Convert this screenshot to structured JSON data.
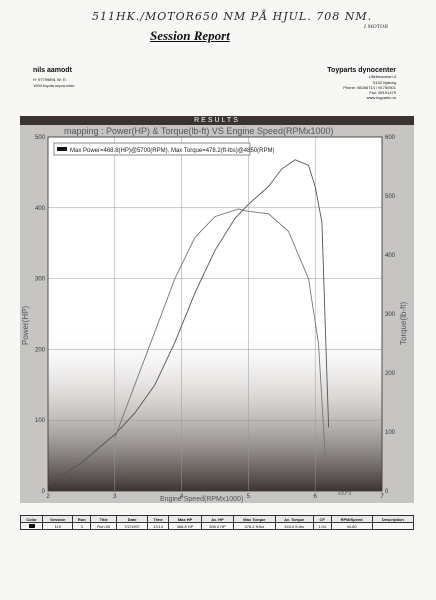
{
  "handwritten_note": "511HK./MOTOR650 NM PÅ HJUL. 708 NM.",
  "handwritten_sub": "I MOTOR",
  "title": "Session Report",
  "customer": {
    "name": "nils aamodt",
    "lines": [
      "H: 97799891  W:  E:",
      "1994 toyota supra mkiv"
    ]
  },
  "dyno_center": {
    "name": "Toyparts dynocenter",
    "lines": [
      "Lillebicoveien 4",
      "5132 Nyborg",
      "Phone: 98286714 / 91750501",
      "Fax:  55191479",
      "www.toyparts.no"
    ]
  },
  "results_label": "RESULTS",
  "chart_data": {
    "type": "line",
    "title": "mapping : Power(HP) & Torque(lb-ft) VS Engine Speed(RPMx1000)",
    "legend": "Max Power=468.8(HP)@5700(RPM), Max Torque=478.2(ft-lbs)@4850(RPM)",
    "xlabel": "Engine Speed(RPMx1000)",
    "x_multiplier": "x10^3",
    "ylabel_left": "Power(HP)",
    "ylabel_right": "Torque(lb-ft)",
    "xlim": [
      2,
      7
    ],
    "ylim_left": [
      0,
      500
    ],
    "ylim_right": [
      0,
      600
    ],
    "x_ticks": [
      "2",
      "3",
      "4",
      "5",
      "6",
      "7"
    ],
    "y_ticks_left": [
      "0",
      "100",
      "200",
      "300",
      "400",
      "500"
    ],
    "y_ticks_right": [
      "0",
      "100",
      "200",
      "300",
      "400",
      "500",
      "600"
    ],
    "grid": true,
    "series": [
      {
        "x": [
          2.0,
          2.5,
          3.0,
          3.3,
          3.6,
          3.9,
          4.2,
          4.5,
          4.8,
          5.0,
          5.3,
          5.5,
          5.7,
          5.9,
          6.0,
          6.1,
          6.2
        ],
        "y": [
          10,
          40,
          80,
          110,
          150,
          210,
          280,
          340,
          385,
          405,
          430,
          455,
          468,
          460,
          430,
          380,
          90
        ],
        "color": "#555555"
      },
      {
        "x": [
          3.0,
          3.3,
          3.6,
          3.9,
          4.2,
          4.5,
          4.85,
          5.0,
          5.3,
          5.6,
          5.9,
          6.05,
          6.15
        ],
        "y": [
          90,
          180,
          270,
          360,
          430,
          465,
          478,
          474,
          470,
          440,
          360,
          250,
          60
        ],
        "color": "#777777"
      }
    ]
  },
  "table": {
    "headers": [
      "Color",
      "Session",
      "Run",
      "Title",
      "Date",
      "Time",
      "Max HP",
      "Av. HP",
      "Max Torque",
      "Av. Torque",
      "CF",
      "RPM/Speed",
      "Description"
    ],
    "rows": [
      [
        "",
        "115",
        "3",
        "Run #3",
        "7/2/1997",
        "13:14",
        "468.8 HP",
        "308.0 HP",
        "478.2 ft-lbs",
        "344.0 ft-lbs",
        "1.04",
        "44.60",
        ""
      ]
    ]
  }
}
